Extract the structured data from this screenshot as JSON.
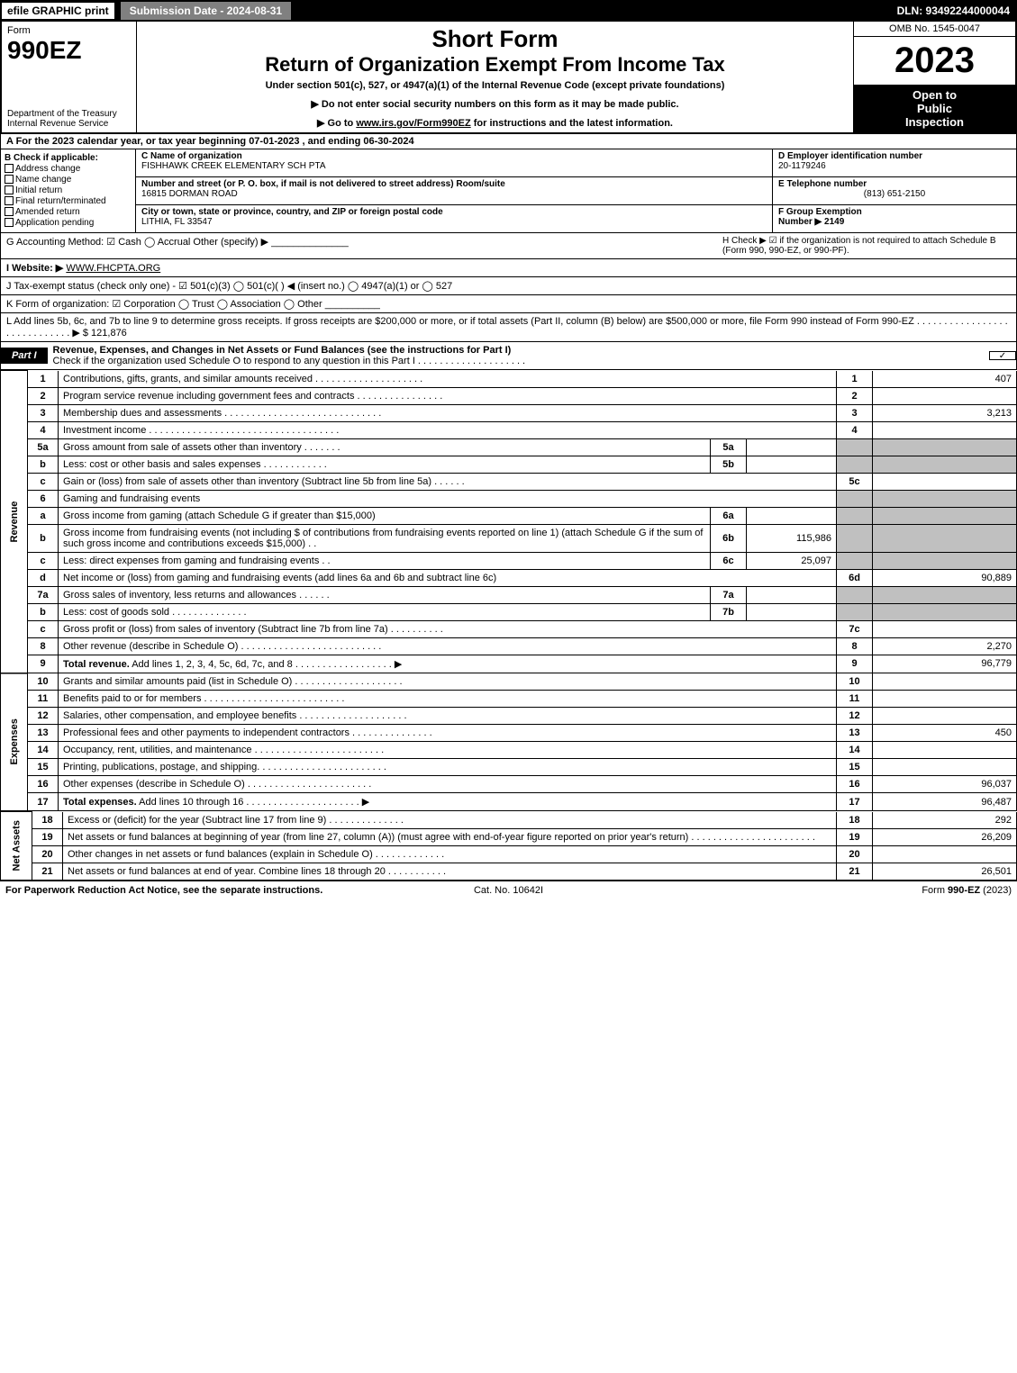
{
  "top": {
    "efile": "efile GRAPHIC print",
    "subdate": "Submission Date - 2024-08-31",
    "dln": "DLN: 93492244000044"
  },
  "hdr": {
    "form": "Form",
    "num": "990EZ",
    "dept": "Department of the Treasury\nInternal Revenue Service",
    "t1": "Short Form",
    "t2": "Return of Organization Exempt From Income Tax",
    "sub": "Under section 501(c), 527, or 4947(a)(1) of the Internal Revenue Code (except private foundations)",
    "note1": "▶ Do not enter social security numbers on this form as it may be made public.",
    "note2_pre": "▶ Go to ",
    "note2_link": "www.irs.gov/Form990EZ",
    "note2_post": " for instructions and the latest information.",
    "omb": "OMB No. 1545-0047",
    "yr": "2023",
    "insp": "Open to\nPublic\nInspection"
  },
  "A": "A  For the 2023 calendar year, or tax year beginning 07-01-2023 , and ending 06-30-2024",
  "B": {
    "hdr": "B  Check if applicable:",
    "o1": "Address change",
    "o2": "Name change",
    "o3": "Initial return",
    "o4": "Final return/terminated",
    "o5": "Amended return",
    "o6": "Application pending"
  },
  "C": {
    "nameL": "C Name of organization",
    "name": "FISHHAWK CREEK ELEMENTARY SCH PTA",
    "addrL": "Number and street (or P. O. box, if mail is not delivered to street address)     Room/suite",
    "addr": "16815 DORMAN ROAD",
    "cityL": "City or town, state or province, country, and ZIP or foreign postal code",
    "city": "LITHIA, FL  33547"
  },
  "D": {
    "l": "D Employer identification number",
    "v": "20-1179246"
  },
  "E": {
    "l": "E Telephone number",
    "v": "(813) 651-2150"
  },
  "F": {
    "l": "F Group Exemption\nNumber  ▶ 2149"
  },
  "G": "G Accounting Method:   ☑ Cash  ◯ Accrual   Other (specify) ▶ ______________",
  "H": "H   Check ▶  ☑  if the organization is not required to attach Schedule B (Form 990, 990-EZ, or 990-PF).",
  "I": {
    "pre": "I Website: ▶",
    "v": "WWW.FHCPTA.ORG"
  },
  "J": "J Tax-exempt status (check only one) - ☑ 501(c)(3) ◯ 501(c)(  ) ◀ (insert no.) ◯ 4947(a)(1) or ◯ 527",
  "K": "K Form of organization:  ☑ Corporation  ◯ Trust  ◯ Association  ◯ Other  __________",
  "L": {
    "t": "L Add lines 5b, 6c, and 7b to line 9 to determine gross receipts. If gross receipts are $200,000 or more, or if total assets (Part II, column (B) below) are $500,000 or more, file Form 990 instead of Form 990-EZ .  .  .  .  .  .  .  .  .  .  .  .  .  .  .  .  .  .  .  .  .  .  .  .  .  .  .  .  . ▶ $ 121,876"
  },
  "P1": {
    "label": "Part I",
    "title": "Revenue, Expenses, and Changes in Net Assets or Fund Balances (see the instructions for Part I)",
    "chknote": "Check if the organization used Schedule O to respond to any question in this Part I .  .  .  .  .  .  .  .  .  .  .  .  .  .  .  .  .  .  .  .",
    "side_rev": "Revenue",
    "side_exp": "Expenses",
    "side_net": "Net Assets"
  },
  "rows": [
    {
      "n": "1",
      "d": "Contributions, gifts, grants, and similar amounts received .  .  .  .  .  .  .  .  .  .  .  .  .  .  .  .  .  .  .  .",
      "num": "1",
      "v": "407"
    },
    {
      "n": "2",
      "d": "Program service revenue including government fees and contracts .  .  .  .  .  .  .  .  .  .  .  .  .  .  .  .",
      "num": "2",
      "v": ""
    },
    {
      "n": "3",
      "d": "Membership dues and assessments .  .  .  .  .  .  .  .  .  .  .  .  .  .  .  .  .  .  .  .  .  .  .  .  .  .  .  .  .",
      "num": "3",
      "v": "3,213"
    },
    {
      "n": "4",
      "d": "Investment income .  .  .  .  .  .  .  .  .  .  .  .  .  .  .  .  .  .  .  .  .  .  .  .  .  .  .  .  .  .  .  .  .  .  .",
      "num": "4",
      "v": ""
    },
    {
      "n": "5a",
      "d": "Gross amount from sale of assets other than inventory .  .  .  .  .  .  .",
      "sn": "5a",
      "sv": "",
      "num": "",
      "v": "",
      "grey": true
    },
    {
      "n": "b",
      "d": "Less: cost or other basis and sales expenses .  .  .  .  .  .  .  .  .  .  .  .",
      "sn": "5b",
      "sv": "",
      "num": "",
      "v": "",
      "grey": true
    },
    {
      "n": "c",
      "d": "Gain or (loss) from sale of assets other than inventory (Subtract line 5b from line 5a) .  .  .  .  .  .",
      "num": "5c",
      "v": ""
    },
    {
      "n": "6",
      "d": "Gaming and fundraising events",
      "num": "",
      "v": "",
      "grey": true,
      "noright": true
    },
    {
      "n": "a",
      "d": "Gross income from gaming (attach Schedule G if greater than $15,000)",
      "sn": "6a",
      "sv": "",
      "num": "",
      "v": "",
      "grey": true
    },
    {
      "n": "b",
      "d": "Gross income from fundraising events (not including $                         of contributions from fundraising events reported on line 1) (attach Schedule G if the sum of such gross income and contributions exceeds $15,000)    .   .",
      "sn": "6b",
      "sv": "115,986",
      "num": "",
      "v": "",
      "grey": true
    },
    {
      "n": "c",
      "d": "Less: direct expenses from gaming and fundraising events    .   .",
      "sn": "6c",
      "sv": "25,097",
      "num": "",
      "v": "",
      "grey": true
    },
    {
      "n": "d",
      "d": "Net income or (loss) from gaming and fundraising events (add lines 6a and 6b and subtract line 6c)",
      "num": "6d",
      "v": "90,889"
    },
    {
      "n": "7a",
      "d": "Gross sales of inventory, less returns and allowances .  .  .  .  .  .",
      "sn": "7a",
      "sv": "",
      "num": "",
      "v": "",
      "grey": true
    },
    {
      "n": "b",
      "d": "Less: cost of goods sold           .  .  .  .  .  .  .  .  .  .  .  .  .  .",
      "sn": "7b",
      "sv": "",
      "num": "",
      "v": "",
      "grey": true
    },
    {
      "n": "c",
      "d": "Gross profit or (loss) from sales of inventory (Subtract line 7b from line 7a) .  .  .  .  .  .  .  .  .  .",
      "num": "7c",
      "v": ""
    },
    {
      "n": "8",
      "d": "Other revenue (describe in Schedule O) .  .  .  .  .  .  .  .  .  .  .  .  .  .  .  .  .  .  .  .  .  .  .  .  .  .",
      "num": "8",
      "v": "2,270"
    },
    {
      "n": "9",
      "d": "Total revenue. Add lines 1, 2, 3, 4, 5c, 6d, 7c, and 8  .  .  .  .  .  .  .  .  .  .  .  .  .  .  .  .  .  .      ▶",
      "num": "9",
      "v": "96,779",
      "bold": true
    }
  ],
  "erows": [
    {
      "n": "10",
      "d": "Grants and similar amounts paid (list in Schedule O) .  .  .  .  .  .  .  .  .  .  .  .  .  .  .  .  .  .  .  .",
      "num": "10",
      "v": ""
    },
    {
      "n": "11",
      "d": "Benefits paid to or for members       .  .  .  .  .  .  .  .  .  .  .  .  .  .  .  .  .  .  .  .  .  .  .  .  .  .",
      "num": "11",
      "v": ""
    },
    {
      "n": "12",
      "d": "Salaries, other compensation, and employee benefits .  .  .  .  .  .  .  .  .  .  .  .  .  .  .  .  .  .  .  .",
      "num": "12",
      "v": ""
    },
    {
      "n": "13",
      "d": "Professional fees and other payments to independent contractors .  .  .  .  .  .  .  .  .  .  .  .  .  .  .",
      "num": "13",
      "v": "450"
    },
    {
      "n": "14",
      "d": "Occupancy, rent, utilities, and maintenance .  .  .  .  .  .  .  .  .  .  .  .  .  .  .  .  .  .  .  .  .  .  .  .",
      "num": "14",
      "v": ""
    },
    {
      "n": "15",
      "d": "Printing, publications, postage, and shipping.  .  .  .  .  .  .  .  .  .  .  .  .  .  .  .  .  .  .  .  .  .  .  .",
      "num": "15",
      "v": ""
    },
    {
      "n": "16",
      "d": "Other expenses (describe in Schedule O)     .  .  .  .  .  .  .  .  .  .  .  .  .  .  .  .  .  .  .  .  .  .  .",
      "num": "16",
      "v": "96,037"
    },
    {
      "n": "17",
      "d": "Total expenses. Add lines 10 through 16      .  .  .  .  .  .  .  .  .  .  .  .  .  .  .  .  .  .  .  .  .    ▶",
      "num": "17",
      "v": "96,487",
      "bold": true
    }
  ],
  "nrows": [
    {
      "n": "18",
      "d": "Excess or (deficit) for the year (Subtract line 17 from line 9)        .  .  .  .  .  .  .  .  .  .  .  .  .  .",
      "num": "18",
      "v": "292"
    },
    {
      "n": "19",
      "d": "Net assets or fund balances at beginning of year (from line 27, column (A)) (must agree with end-of-year figure reported on prior year's return) .  .  .  .  .  .  .  .  .  .  .  .  .  .  .  .  .  .  .  .  .  .  .",
      "num": "19",
      "v": "26,209"
    },
    {
      "n": "20",
      "d": "Other changes in net assets or fund balances (explain in Schedule O) .  .  .  .  .  .  .  .  .  .  .  .  .",
      "num": "20",
      "v": ""
    },
    {
      "n": "21",
      "d": "Net assets or fund balances at end of year. Combine lines 18 through 20 .  .  .  .  .  .  .  .  .  .  .",
      "num": "21",
      "v": "26,501"
    }
  ],
  "footer": {
    "l": "For Paperwork Reduction Act Notice, see the separate instructions.",
    "c": "Cat. No. 10642I",
    "r": "Form 990-EZ (2023)"
  }
}
